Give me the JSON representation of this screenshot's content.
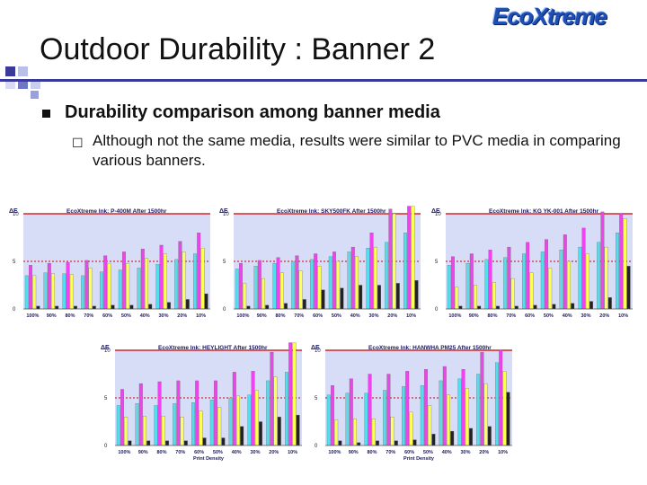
{
  "page": {
    "title": "Outdoor Durability : Banner 2",
    "logo_text": "EcoXtreme",
    "bullet_main": "Durability comparison among banner media",
    "bullet_sub": "Although not the same media, results were similar to PVC media in comparing various banners."
  },
  "colors": {
    "accent_blue": "#3a3a9a",
    "plot_bg": "#d7dcf7",
    "threshold_red": "#d00000",
    "series": [
      "#55ddee",
      "#ee44ee",
      "#ffff55",
      "#222222"
    ]
  },
  "chart_data": [
    {
      "type": "bar",
      "title": "EcoXtreme Ink: P-400M   After 1500hr",
      "ylabel": "ΔE",
      "xlabel": "",
      "ylim": [
        0,
        10
      ],
      "yticks": [
        0,
        5,
        10
      ],
      "threshold": 10,
      "dashed_threshold": 5,
      "categories": [
        "100%",
        "90%",
        "80%",
        "70%",
        "60%",
        "50%",
        "40%",
        "30%",
        "20%",
        "10%"
      ],
      "series": [
        {
          "values": [
            3.5,
            3.8,
            3.7,
            3.5,
            3.9,
            4.1,
            4.3,
            4.7,
            5.2,
            5.8
          ]
        },
        {
          "values": [
            4.6,
            4.8,
            4.9,
            5.1,
            5.6,
            6.0,
            6.3,
            6.7,
            7.1,
            8.0
          ]
        },
        {
          "values": [
            3.5,
            3.7,
            3.6,
            4.3,
            4.8,
            4.8,
            5.3,
            5.8,
            6.0,
            6.4
          ]
        },
        {
          "values": [
            0.3,
            0.3,
            0.3,
            0.3,
            0.4,
            0.4,
            0.5,
            0.7,
            1.0,
            1.6
          ]
        }
      ]
    },
    {
      "type": "bar",
      "title": "EcoXtreme Ink: SKY500FK   After 1500hr",
      "ylabel": "ΔE",
      "xlabel": "",
      "ylim": [
        0,
        10
      ],
      "yticks": [
        0,
        5,
        10
      ],
      "threshold": 10,
      "dashed_threshold": 5,
      "categories": [
        "100%",
        "90%",
        "80%",
        "70%",
        "60%",
        "50%",
        "40%",
        "30%",
        "20%",
        "10%"
      ],
      "series": [
        {
          "values": [
            4.2,
            4.5,
            4.8,
            5.0,
            5.2,
            5.5,
            6.0,
            6.4,
            7.0,
            8.0
          ]
        },
        {
          "values": [
            4.8,
            5.1,
            5.4,
            5.6,
            5.8,
            6.0,
            6.5,
            8.0,
            10.5,
            11.0
          ]
        },
        {
          "values": [
            2.7,
            3.2,
            3.8,
            4.0,
            4.5,
            5.0,
            5.5,
            6.5,
            10.0,
            12.0
          ]
        },
        {
          "values": [
            0.3,
            0.4,
            0.6,
            1.0,
            2.0,
            2.2,
            2.5,
            2.5,
            2.7,
            3.0
          ]
        }
      ]
    },
    {
      "type": "bar",
      "title": "EcoXtreme Ink: KG YK-001   After 1500hr",
      "ylabel": "ΔE",
      "xlabel": "",
      "ylim": [
        0,
        10
      ],
      "yticks": [
        0,
        5,
        10
      ],
      "threshold": 10,
      "dashed_threshold": 5,
      "categories": [
        "100%",
        "90%",
        "80%",
        "70%",
        "60%",
        "50%",
        "40%",
        "30%",
        "20%",
        "10%"
      ],
      "series": [
        {
          "values": [
            4.6,
            4.8,
            5.2,
            5.4,
            5.8,
            6.0,
            6.2,
            6.5,
            7.0,
            8.0
          ]
        },
        {
          "values": [
            5.5,
            5.8,
            6.2,
            6.5,
            7.0,
            7.3,
            7.8,
            8.5,
            10.2,
            10.0
          ]
        },
        {
          "values": [
            2.3,
            2.5,
            2.8,
            3.2,
            3.8,
            4.3,
            5.0,
            5.8,
            6.5,
            9.5
          ]
        },
        {
          "values": [
            0.3,
            0.3,
            0.3,
            0.3,
            0.4,
            0.5,
            0.6,
            0.8,
            1.2,
            4.5
          ]
        }
      ]
    },
    {
      "type": "bar",
      "title": "EcoXtreme Ink: HEYLIGHT   After 1500hr",
      "ylabel": "ΔE",
      "xlabel": "Print Density",
      "ylim": [
        0,
        10
      ],
      "yticks": [
        0,
        5,
        10
      ],
      "threshold": 10,
      "dashed_threshold": 5,
      "categories": [
        "100%",
        "90%",
        "80%",
        "70%",
        "60%",
        "50%",
        "40%",
        "30%",
        "20%",
        "10%"
      ],
      "series": [
        {
          "values": [
            4.2,
            4.4,
            4.2,
            4.4,
            4.5,
            4.8,
            5.0,
            5.3,
            6.8,
            7.7
          ]
        },
        {
          "values": [
            5.9,
            6.5,
            6.7,
            6.8,
            6.8,
            6.8,
            7.7,
            7.8,
            9.8,
            10.8
          ]
        },
        {
          "values": [
            3.0,
            3.1,
            3.1,
            3.0,
            3.6,
            4.0,
            5.2,
            5.8,
            7.2,
            12.5
          ]
        },
        {
          "values": [
            0.5,
            0.5,
            0.5,
            0.5,
            0.8,
            0.8,
            2.0,
            2.5,
            3.0,
            3.2
          ]
        }
      ]
    },
    {
      "type": "bar",
      "title": "EcoXtreme Ink: HANWHA PM25   After 1500hr",
      "ylabel": "ΔE",
      "xlabel": "Print Density",
      "ylim": [
        0,
        10
      ],
      "yticks": [
        0,
        5,
        10
      ],
      "threshold": 10,
      "dashed_threshold": 5,
      "categories": [
        "100%",
        "90%",
        "80%",
        "70%",
        "60%",
        "50%",
        "40%",
        "30%",
        "20%",
        "10%"
      ],
      "series": [
        {
          "values": [
            5.3,
            5.5,
            5.5,
            5.8,
            6.2,
            6.3,
            6.8,
            7.0,
            7.5,
            8.7
          ]
        },
        {
          "values": [
            6.3,
            7.0,
            7.5,
            7.5,
            7.8,
            8.0,
            8.3,
            8.0,
            9.8,
            10.0
          ]
        },
        {
          "values": [
            2.7,
            2.8,
            2.8,
            3.0,
            3.5,
            4.2,
            5.3,
            6.0,
            6.5,
            7.8
          ]
        },
        {
          "values": [
            0.5,
            0.3,
            0.5,
            0.5,
            0.6,
            1.2,
            1.5,
            1.8,
            2.0,
            5.6
          ]
        }
      ]
    }
  ]
}
